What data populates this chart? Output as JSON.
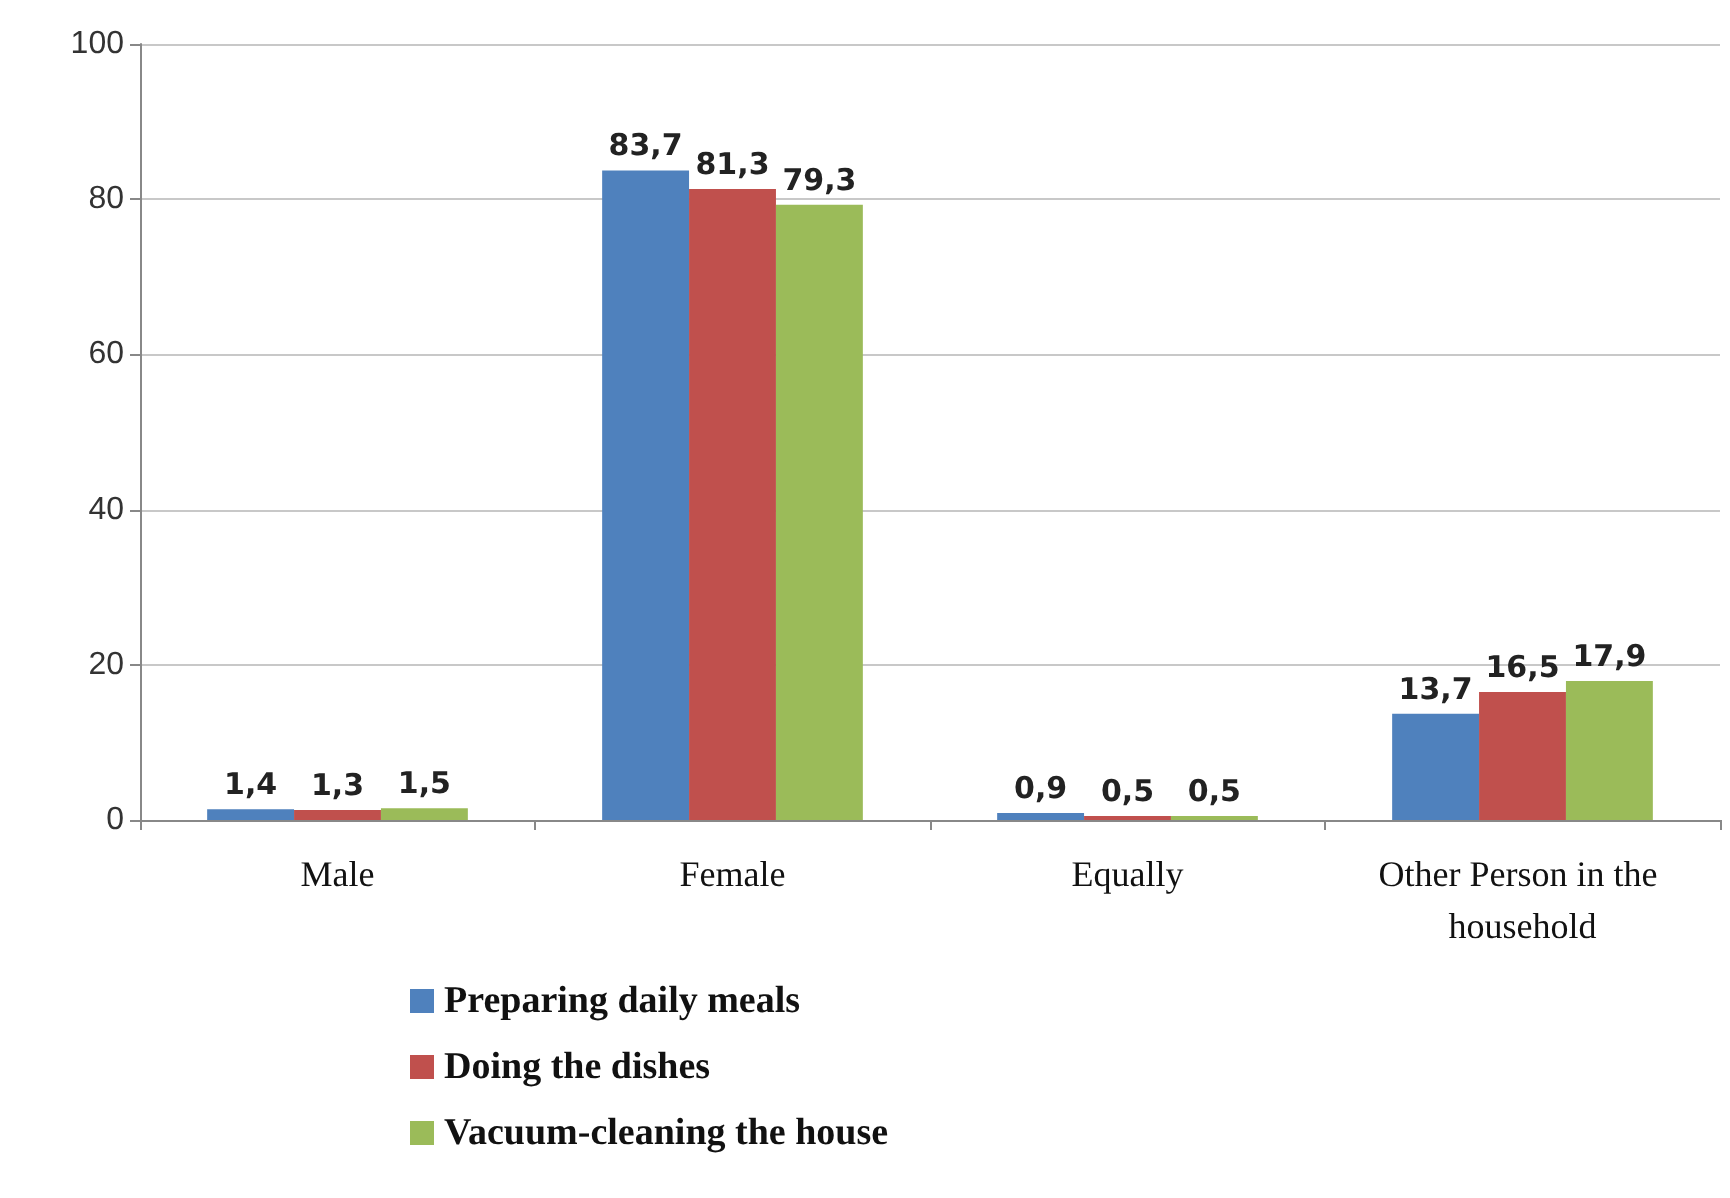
{
  "chart_data": {
    "type": "bar",
    "categories": [
      "Male",
      "Female",
      "Equally",
      "Other Person in the household"
    ],
    "series": [
      {
        "name": "Preparing daily meals",
        "color": "#4f81bd",
        "values": [
          1.4,
          83.7,
          0.9,
          13.7
        ],
        "value_labels": [
          "1,4",
          "83,7",
          "0,9",
          "13,7"
        ]
      },
      {
        "name": "Doing the dishes",
        "color": "#c0504d",
        "values": [
          1.3,
          81.3,
          0.5,
          16.5
        ],
        "value_labels": [
          "1,3",
          "81,3",
          "0,5",
          "16,5"
        ]
      },
      {
        "name": "Vacuum-cleaning the house",
        "color": "#9bbb59",
        "values": [
          1.5,
          79.3,
          0.5,
          17.9
        ],
        "value_labels": [
          "1,5",
          "79,3",
          "0,5",
          "17,9"
        ]
      }
    ],
    "ylim": [
      0,
      100
    ],
    "yticks": [
      0,
      20,
      40,
      60,
      80,
      100
    ],
    "grid": "y",
    "legend": "bottom"
  }
}
